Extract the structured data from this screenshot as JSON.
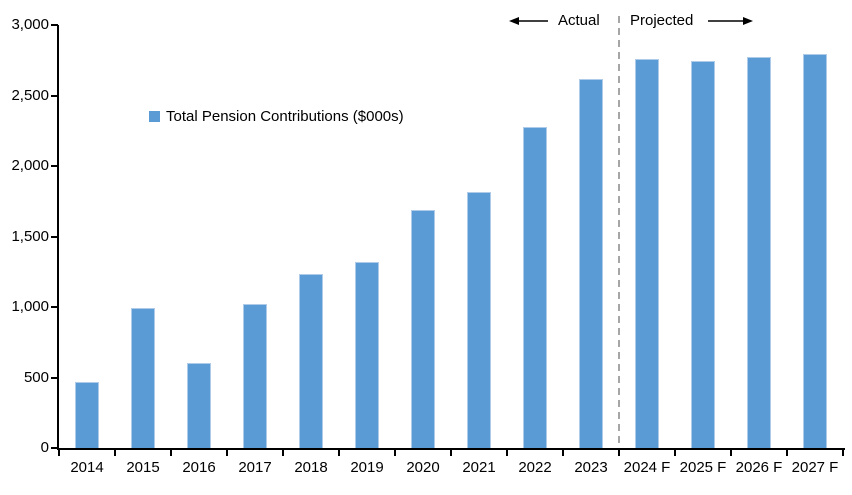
{
  "chart_data": {
    "type": "bar",
    "title": "",
    "xlabel": "",
    "ylabel": "",
    "categories": [
      "2014",
      "2015",
      "2016",
      "2017",
      "2018",
      "2019",
      "2020",
      "2021",
      "2022",
      "2023",
      "2024 F",
      "2025 F",
      "2026 F",
      "2027 F"
    ],
    "series": [
      {
        "name": "Total Pension Contributions ($000s)",
        "color": "#5B9BD5",
        "values": [
          465,
          990,
          605,
          1020,
          1235,
          1320,
          1690,
          1815,
          2280,
          2615,
          2760,
          2745,
          2775,
          2795
        ]
      }
    ],
    "ylim": [
      0,
      3000
    ],
    "ytick_step": 500,
    "ytick_labels": [
      "0",
      "500",
      "1,000",
      "1,500",
      "2,000",
      "2,500",
      "3,000"
    ],
    "grid": false,
    "legend": {
      "label": "Total Pension Contributions ($000s)",
      "marker_color": "#5B9BD5",
      "position": "inside-upper-left"
    },
    "divider": {
      "after_category": "2023",
      "style": "dashed",
      "color": "#A6A6A6"
    },
    "annotations": {
      "left_label": "Actual",
      "left_icon": "left-arrow-icon",
      "right_label": "Projected",
      "right_icon": "right-arrow-icon"
    }
  },
  "colors": {
    "bar": "#5B9BD5",
    "bar_edge": "#AECBEA",
    "axis": "#000000",
    "divider": "#A6A6A6",
    "background": "#FFFFFF",
    "text": "#000000"
  }
}
